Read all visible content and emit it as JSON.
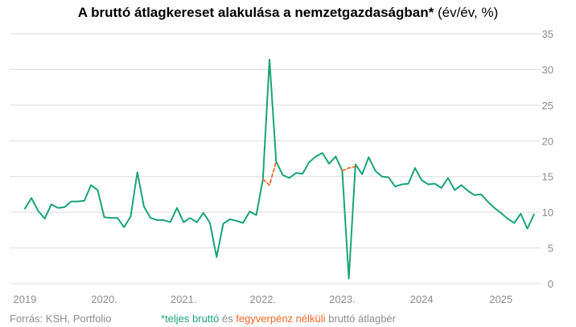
{
  "title": {
    "main": "A bruttó átlagkereset alakulása a nemzetgazdaságban*",
    "unit": " (év/év, %)"
  },
  "footer": {
    "source": "Forrás: KSH, Portfolio"
  },
  "legend": {
    "asterisk": "*",
    "green_label": "teljes bruttó",
    "conj": " és ",
    "orange_label": "fegyverpénz nélküli",
    "tail": " bruttó átlagbér"
  },
  "colors": {
    "green": "#1aa37a",
    "orange": "#f26722",
    "grid": "#dcdcdc",
    "text": "#8c8c8c"
  },
  "chart_data": {
    "type": "line",
    "ylim": [
      0,
      35
    ],
    "y_ticks": [
      "0",
      "5",
      "10",
      "15",
      "20",
      "25",
      "30",
      "35"
    ],
    "x_ticks": [
      {
        "label": "2019",
        "x": 2019.0
      },
      {
        "label": "2020.",
        "x": 2020.0
      },
      {
        "label": "2021.",
        "x": 2021.0
      },
      {
        "label": "2022.",
        "x": 2022.0
      },
      {
        "label": "2023.",
        "x": 2023.0
      },
      {
        "label": "2024",
        "x": 2024.0
      },
      {
        "label": "2025",
        "x": 2025.0
      }
    ],
    "grid": true,
    "series": [
      {
        "name": "teljes bruttó",
        "color": "#1aa37a",
        "style": "solid",
        "points": [
          [
            2019.0,
            10.5
          ],
          [
            2019.083,
            12.0
          ],
          [
            2019.167,
            10.2
          ],
          [
            2019.25,
            9.1
          ],
          [
            2019.333,
            11.1
          ],
          [
            2019.417,
            10.6
          ],
          [
            2019.5,
            10.7
          ],
          [
            2019.583,
            11.5
          ],
          [
            2019.667,
            11.5
          ],
          [
            2019.75,
            11.6
          ],
          [
            2019.833,
            13.8
          ],
          [
            2019.917,
            13.1
          ],
          [
            2020.0,
            9.3
          ],
          [
            2020.083,
            9.2
          ],
          [
            2020.167,
            9.2
          ],
          [
            2020.25,
            7.9
          ],
          [
            2020.333,
            9.4
          ],
          [
            2020.417,
            15.6
          ],
          [
            2020.5,
            10.8
          ],
          [
            2020.583,
            9.2
          ],
          [
            2020.667,
            8.9
          ],
          [
            2020.75,
            8.9
          ],
          [
            2020.833,
            8.6
          ],
          [
            2020.917,
            10.6
          ],
          [
            2021.0,
            8.6
          ],
          [
            2021.083,
            9.2
          ],
          [
            2021.167,
            8.6
          ],
          [
            2021.25,
            9.9
          ],
          [
            2021.333,
            8.5
          ],
          [
            2021.417,
            3.7
          ],
          [
            2021.5,
            8.4
          ],
          [
            2021.583,
            9.0
          ],
          [
            2021.667,
            8.8
          ],
          [
            2021.75,
            8.5
          ],
          [
            2021.833,
            10.1
          ],
          [
            2021.917,
            9.6
          ],
          [
            2022.0,
            14.6
          ],
          [
            2022.083,
            31.4
          ],
          [
            2022.167,
            17.1
          ],
          [
            2022.25,
            15.2
          ],
          [
            2022.333,
            14.8
          ],
          [
            2022.417,
            15.5
          ],
          [
            2022.5,
            15.4
          ],
          [
            2022.583,
            17.0
          ],
          [
            2022.667,
            17.8
          ],
          [
            2022.75,
            18.3
          ],
          [
            2022.833,
            16.8
          ],
          [
            2022.917,
            17.8
          ],
          [
            2023.0,
            15.8
          ],
          [
            2023.083,
            0.7
          ],
          [
            2023.167,
            16.7
          ],
          [
            2023.25,
            15.3
          ],
          [
            2023.333,
            17.7
          ],
          [
            2023.417,
            15.8
          ],
          [
            2023.5,
            15.0
          ],
          [
            2023.583,
            14.9
          ],
          [
            2023.667,
            13.6
          ],
          [
            2023.75,
            13.9
          ],
          [
            2023.833,
            14.0
          ],
          [
            2023.917,
            16.2
          ],
          [
            2024.0,
            14.5
          ],
          [
            2024.083,
            13.9
          ],
          [
            2024.167,
            14.0
          ],
          [
            2024.25,
            13.4
          ],
          [
            2024.333,
            14.8
          ],
          [
            2024.417,
            13.1
          ],
          [
            2024.5,
            13.8
          ],
          [
            2024.583,
            13.0
          ],
          [
            2024.667,
            12.4
          ],
          [
            2024.75,
            12.5
          ],
          [
            2024.833,
            11.5
          ],
          [
            2024.917,
            10.6
          ],
          [
            2025.0,
            9.9
          ],
          [
            2025.083,
            9.1
          ],
          [
            2025.167,
            8.5
          ],
          [
            2025.25,
            9.8
          ],
          [
            2025.333,
            7.7
          ],
          [
            2025.417,
            9.7
          ]
        ]
      },
      {
        "name": "fegyverpénz nélküli",
        "color": "#f26722",
        "style": "dashed",
        "points": [
          [
            2022.0,
            14.6
          ],
          [
            2022.083,
            13.8
          ],
          [
            2022.167,
            17.1
          ]
        ]
      },
      {
        "name": "fegyverpénz nélküli",
        "color": "#f26722",
        "style": "dashed",
        "points": [
          [
            2023.0,
            15.8
          ],
          [
            2023.083,
            16.2
          ],
          [
            2023.167,
            16.4
          ]
        ]
      }
    ]
  }
}
